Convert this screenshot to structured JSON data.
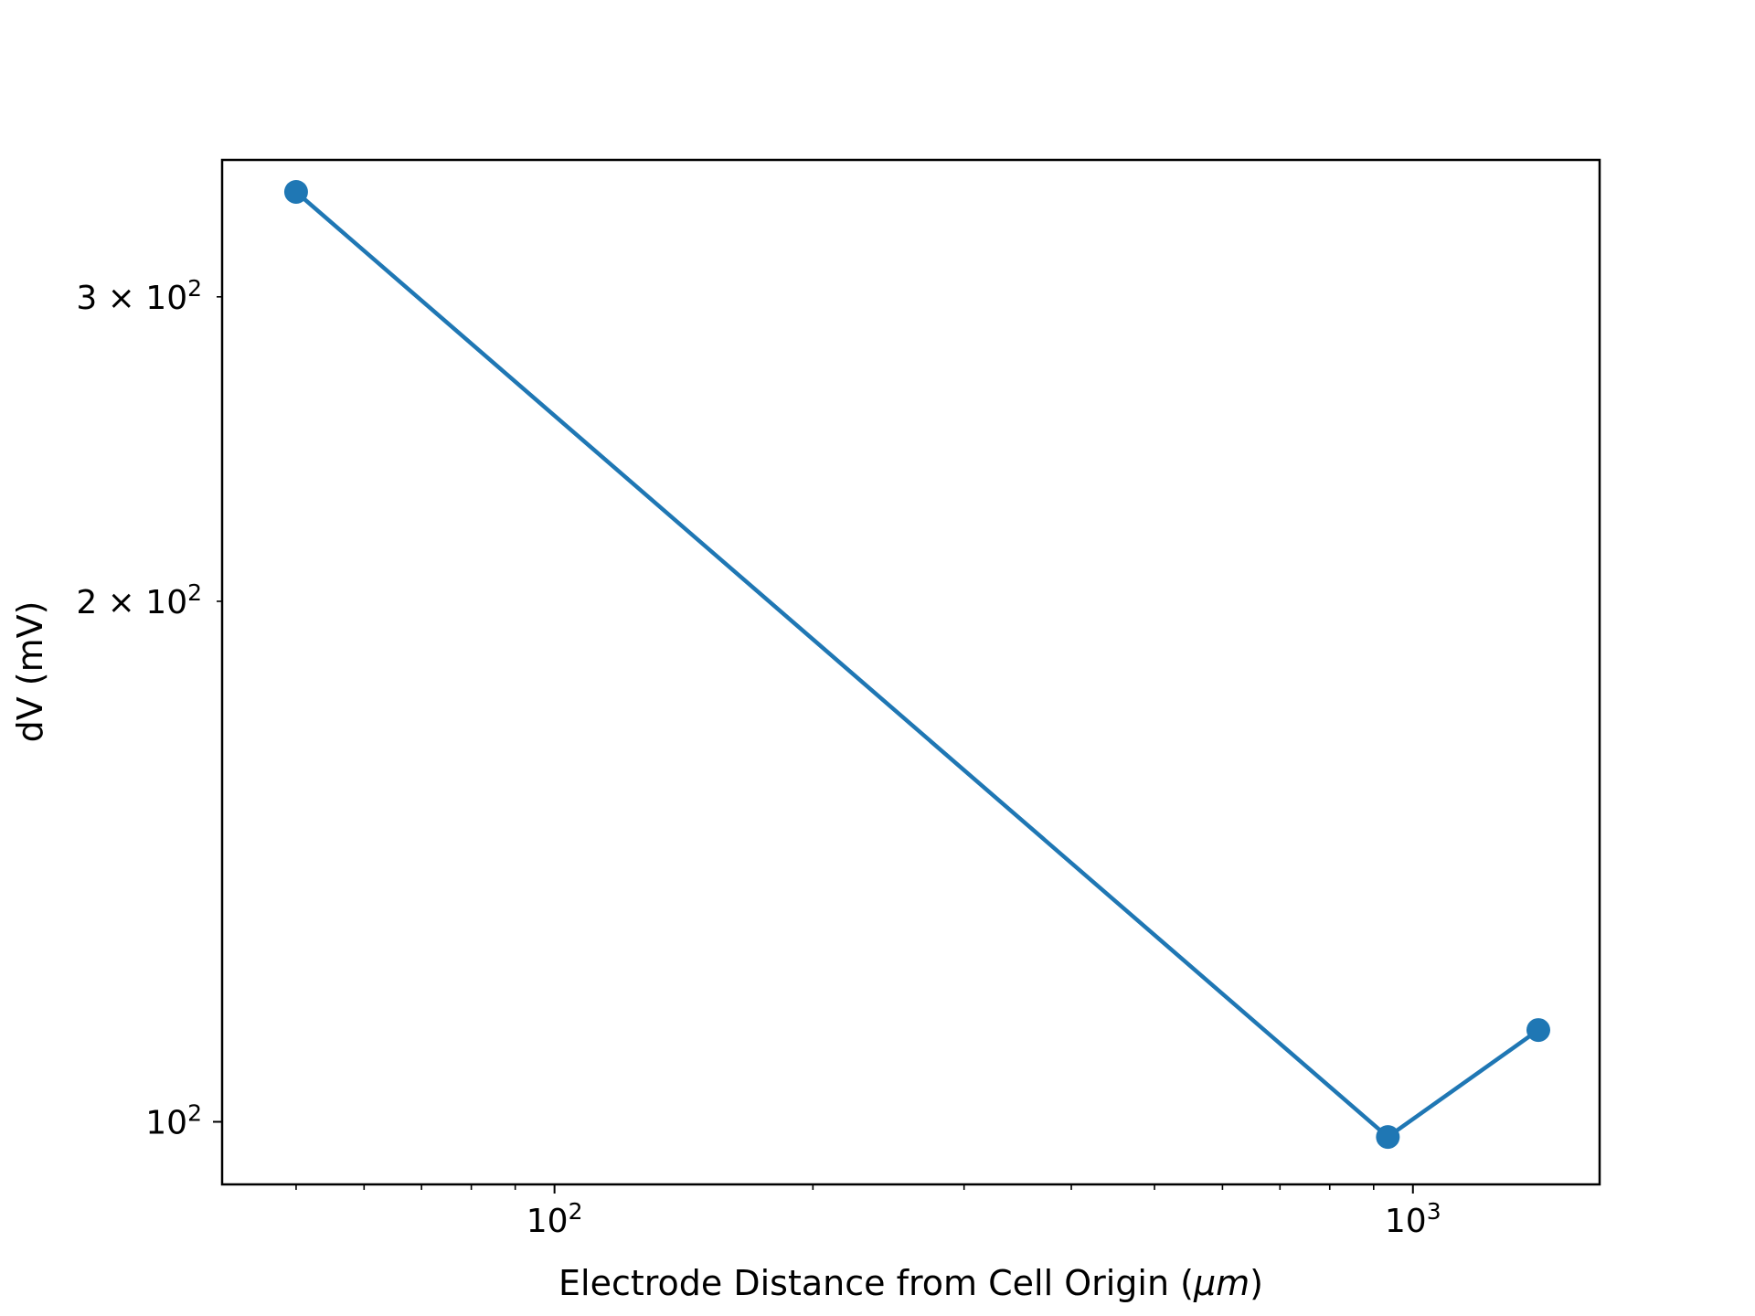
{
  "chart_data": {
    "type": "line",
    "title": "",
    "xlabel": "Electrode Distance from Cell Origin",
    "xlabel_unit": "μm",
    "ylabel": "dV (mV)",
    "x_scale": "log",
    "y_scale": "log",
    "xlim": [
      41,
      1650
    ],
    "ylim": [
      92,
      360
    ],
    "grid": false,
    "legend": "none",
    "x_ticks": [
      {
        "value": 100,
        "base": "10",
        "exp": "2"
      },
      {
        "value": 1000,
        "base": "10",
        "exp": "3"
      }
    ],
    "y_ticks": [
      {
        "value": 100,
        "mant": "",
        "base": "10",
        "exp": "2"
      },
      {
        "value": 200,
        "mant": "2",
        "base": "10",
        "exp": "2"
      },
      {
        "value": 300,
        "mant": "3",
        "base": "10",
        "exp": "2"
      }
    ],
    "series": [
      {
        "color": "#1f77b4",
        "marker": "circle",
        "points": [
          {
            "x": 50,
            "y": 345
          },
          {
            "x": 935,
            "y": 98
          },
          {
            "x": 1400,
            "y": 113
          }
        ]
      }
    ]
  }
}
